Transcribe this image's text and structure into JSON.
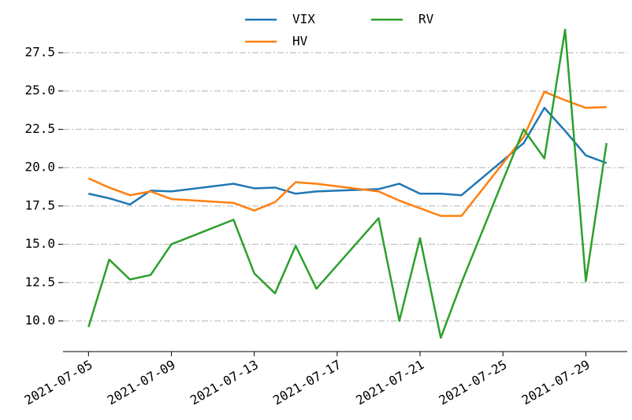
{
  "chart_data": {
    "type": "line",
    "x": [
      "2021-07-05",
      "2021-07-06",
      "2021-07-07",
      "2021-07-08",
      "2021-07-09",
      "2021-07-12",
      "2021-07-13",
      "2021-07-14",
      "2021-07-15",
      "2021-07-16",
      "2021-07-19",
      "2021-07-20",
      "2021-07-21",
      "2021-07-22",
      "2021-07-23",
      "2021-07-26",
      "2021-07-27",
      "2021-07-28",
      "2021-07-29",
      "2021-07-30"
    ],
    "series": [
      {
        "name": "VIX",
        "color": "#1f77b4",
        "values": [
          18.3,
          18.0,
          17.6,
          18.5,
          18.45,
          18.95,
          18.65,
          18.7,
          18.3,
          18.45,
          18.6,
          18.95,
          18.3,
          18.3,
          18.2,
          21.6,
          23.9,
          22.4,
          20.8,
          20.3
        ]
      },
      {
        "name": "HV",
        "color": "#ff7f0e",
        "values": [
          19.3,
          18.7,
          18.2,
          18.45,
          17.95,
          17.7,
          17.2,
          17.75,
          19.05,
          18.95,
          18.45,
          17.85,
          17.35,
          16.85,
          16.85,
          22.0,
          24.95,
          24.4,
          23.9,
          23.95
        ]
      },
      {
        "name": "RV",
        "color": "#2ca02c",
        "values": [
          9.6,
          14.0,
          12.7,
          13.0,
          15.0,
          16.6,
          13.1,
          11.8,
          14.9,
          12.1,
          16.7,
          10.0,
          15.4,
          8.9,
          12.5,
          22.5,
          20.6,
          29.0,
          12.6,
          21.6
        ]
      }
    ],
    "xlim": [
      "2021-07-04",
      "2021-07-31"
    ],
    "xticks": [
      "2021-07-05",
      "2021-07-09",
      "2021-07-13",
      "2021-07-17",
      "2021-07-21",
      "2021-07-25",
      "2021-07-29"
    ],
    "ylim": [
      8,
      29.5
    ],
    "yticks": [
      {
        "value": 10,
        "label": "10.0"
      },
      12.5,
      {
        "value": 15,
        "label": "15.0"
      },
      17.5,
      {
        "value": 20,
        "label": "20.0"
      },
      22.5,
      {
        "value": 25,
        "label": "25.0"
      },
      27.5
    ],
    "grid": true,
    "legend": "upper center"
  }
}
